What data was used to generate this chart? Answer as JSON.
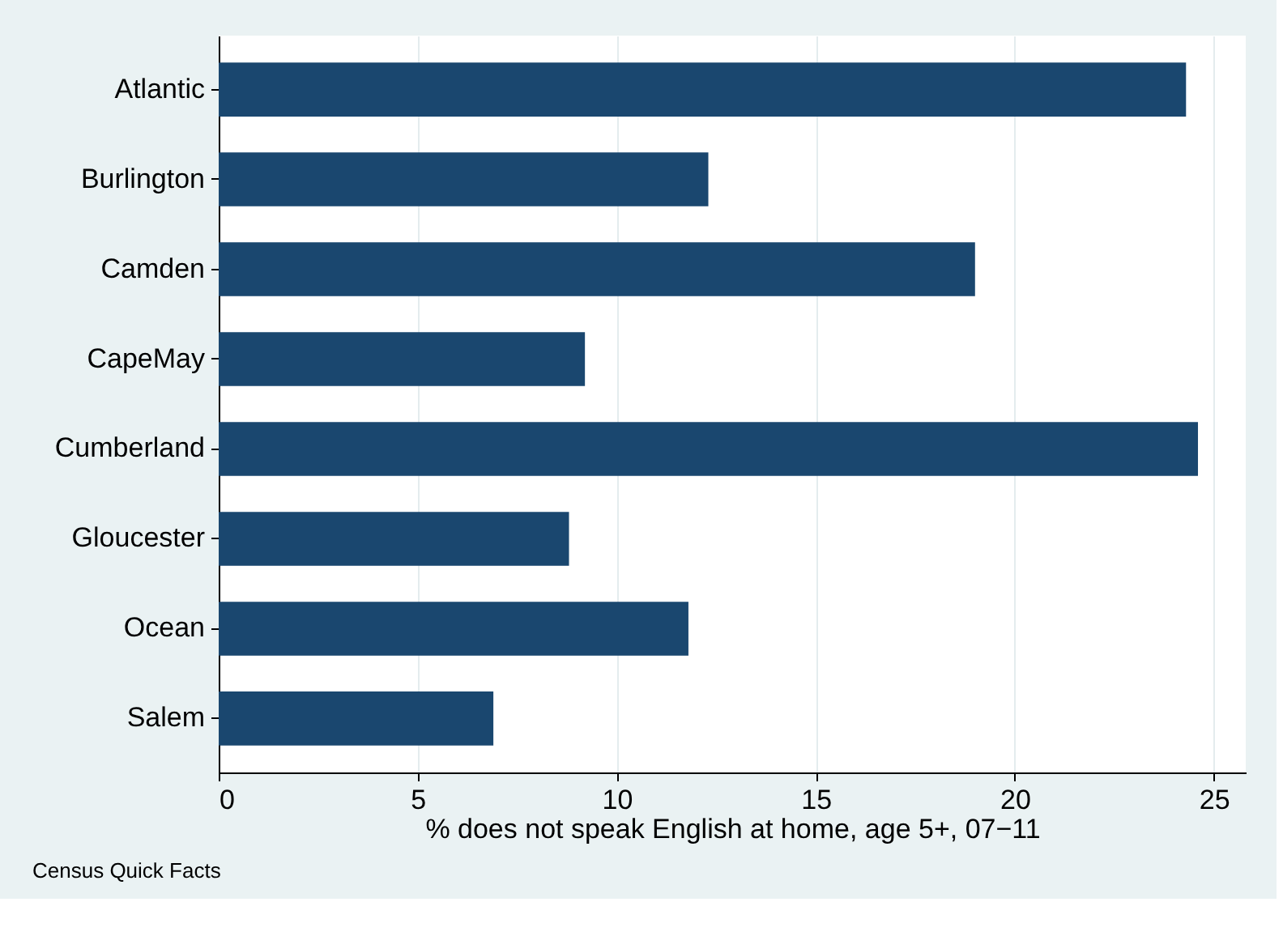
{
  "chart_data": {
    "type": "bar",
    "orientation": "horizontal",
    "categories": [
      "Atlantic",
      "Burlington",
      "Camden",
      "CapeMay",
      "Cumberland",
      "Gloucester",
      "Ocean",
      "Salem"
    ],
    "values": [
      24.3,
      12.3,
      19.0,
      9.2,
      24.6,
      8.8,
      11.8,
      6.9
    ],
    "color": "#1a476f",
    "xlabel": "% does not speak English at home, age 5+, 07−11",
    "xlim": [
      0,
      25.8
    ],
    "xticks": [
      0,
      5,
      10,
      15,
      20,
      25
    ],
    "grid": "x",
    "annotations": [
      "Census Quick Facts"
    ]
  }
}
